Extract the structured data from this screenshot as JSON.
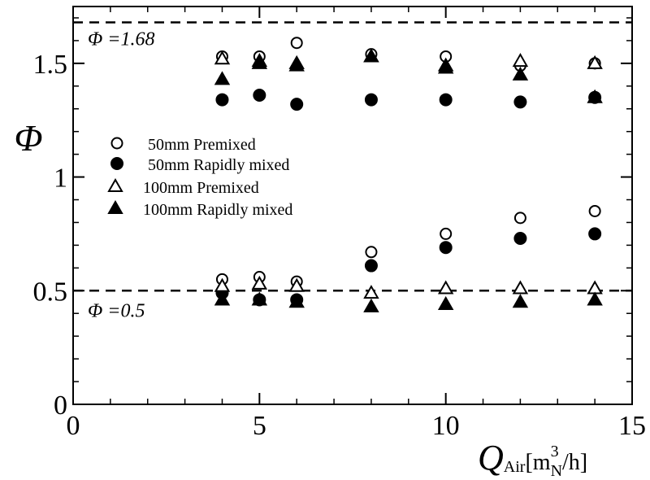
{
  "chart_data": {
    "type": "scatter",
    "title": "",
    "xlim": [
      0,
      15
    ],
    "ylim": [
      0,
      1.75
    ],
    "xticks": [
      {
        "value": 0,
        "label": "0"
      },
      {
        "value": 5,
        "label": "5"
      },
      {
        "value": 10,
        "label": "10"
      },
      {
        "value": 15,
        "label": "15"
      }
    ],
    "yticks": [
      {
        "value": 0,
        "label": "0"
      },
      {
        "value": 0.5,
        "label": "0.5"
      },
      {
        "value": 1,
        "label": "1"
      },
      {
        "value": 1.5,
        "label": "1.5"
      }
    ],
    "xlabel": {
      "symbol": "Q",
      "subscript": "Air",
      "unit_open": "[m",
      "unit_sup": "3",
      "unit_sub": "N",
      "unit_close": "/h]"
    },
    "ylabel": "Φ",
    "grid": false,
    "legend_position": "center-left",
    "reference_lines": [
      {
        "y": 1.68,
        "style": "dashed",
        "label": "Φ =1.68"
      },
      {
        "y": 0.5,
        "style": "dashed",
        "label": "Φ =0.5"
      }
    ],
    "series": [
      {
        "name": "50mm Premixed",
        "marker": "circle-open",
        "points": [
          [
            4,
            1.53
          ],
          [
            5,
            1.53
          ],
          [
            6,
            1.59
          ],
          [
            8,
            1.54
          ],
          [
            10,
            1.53
          ],
          [
            12,
            1.49
          ],
          [
            14,
            1.5
          ],
          [
            4,
            0.55
          ],
          [
            5,
            0.56
          ],
          [
            6,
            0.54
          ],
          [
            8,
            0.67
          ],
          [
            10,
            0.75
          ],
          [
            12,
            0.82
          ],
          [
            14,
            0.85
          ]
        ]
      },
      {
        "name": "50mm Rapidly mixed",
        "marker": "circle-filled",
        "points": [
          [
            4,
            1.34
          ],
          [
            5,
            1.36
          ],
          [
            6,
            1.32
          ],
          [
            8,
            1.34
          ],
          [
            10,
            1.34
          ],
          [
            12,
            1.33
          ],
          [
            14,
            1.35
          ],
          [
            4,
            0.49
          ],
          [
            5,
            0.46
          ],
          [
            6,
            0.46
          ],
          [
            8,
            0.61
          ],
          [
            10,
            0.69
          ],
          [
            12,
            0.73
          ],
          [
            14,
            0.75
          ]
        ]
      },
      {
        "name": "100mm Premixed",
        "marker": "triangle-open",
        "points": [
          [
            4,
            1.52
          ],
          [
            5,
            1.51
          ],
          [
            6,
            1.5
          ],
          [
            8,
            1.53
          ],
          [
            10,
            1.49
          ],
          [
            12,
            1.51
          ],
          [
            14,
            1.5
          ],
          [
            4,
            0.52
          ],
          [
            5,
            0.53
          ],
          [
            6,
            0.52
          ],
          [
            8,
            0.49
          ],
          [
            10,
            0.51
          ],
          [
            12,
            0.51
          ],
          [
            14,
            0.51
          ]
        ]
      },
      {
        "name": "100mm Rapidly mixed",
        "marker": "triangle-filled",
        "points": [
          [
            4,
            1.43
          ],
          [
            5,
            1.5
          ],
          [
            6,
            1.49
          ],
          [
            8,
            1.53
          ],
          [
            10,
            1.48
          ],
          [
            12,
            1.45
          ],
          [
            14,
            1.35
          ],
          [
            4,
            0.46
          ],
          [
            5,
            0.46
          ],
          [
            6,
            0.45
          ],
          [
            8,
            0.43
          ],
          [
            10,
            0.44
          ],
          [
            12,
            0.45
          ],
          [
            14,
            0.46
          ]
        ]
      }
    ]
  }
}
